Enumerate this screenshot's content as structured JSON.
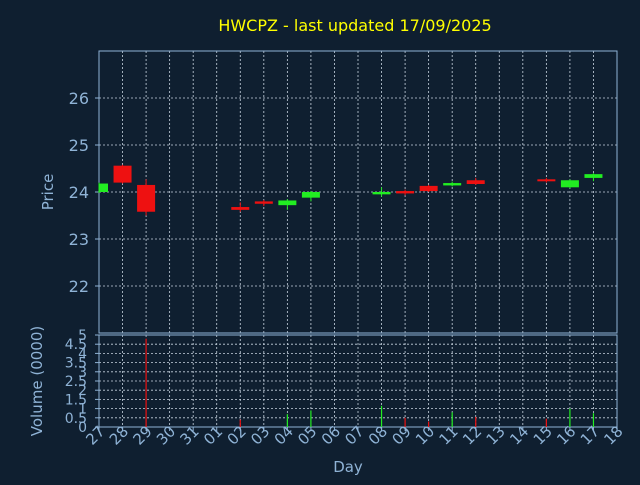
{
  "colors": {
    "background": "#0f1f30",
    "axis": "#8fb3d6",
    "grid": "#c8d4e0",
    "title": "#ffff00",
    "up": "#22ee22",
    "down": "#ee1111"
  },
  "chart_data": [
    {
      "type": "candlestick",
      "title": "HWCPZ - last updated 17/09/2025",
      "ylabel": "Price",
      "ylim": [
        21.0,
        27.0
      ],
      "yticks": [
        "22",
        "23",
        "24",
        "25",
        "26"
      ],
      "grid": true,
      "x": [
        "27",
        "28",
        "29",
        "30",
        "31",
        "01",
        "02",
        "03",
        "04",
        "05",
        "06",
        "07",
        "08",
        "09",
        "10",
        "11",
        "12",
        "13",
        "14",
        "15",
        "16",
        "17",
        "18"
      ],
      "candles": [
        {
          "day": "27",
          "open": 24.0,
          "close": 24.18,
          "high": 24.2,
          "low": 23.98
        },
        {
          "day": "28",
          "open": 24.56,
          "close": 24.2,
          "high": 24.58,
          "low": 24.18
        },
        {
          "day": "29",
          "open": 24.15,
          "close": 23.58,
          "high": 24.27,
          "low": 23.5
        },
        {
          "day": "02",
          "open": 23.68,
          "close": 23.62,
          "high": 23.78,
          "low": 23.58
        },
        {
          "day": "03",
          "open": 23.8,
          "close": 23.75,
          "high": 23.83,
          "low": 23.7
        },
        {
          "day": "04",
          "open": 23.72,
          "close": 23.82,
          "high": 23.85,
          "low": 23.62
        },
        {
          "day": "05",
          "open": 23.88,
          "close": 24.0,
          "high": 24.02,
          "low": 23.8
        },
        {
          "day": "08",
          "open": 23.95,
          "close": 24.0,
          "high": 24.1,
          "low": 23.9
        },
        {
          "day": "09",
          "open": 24.02,
          "close": 23.97,
          "high": 24.05,
          "low": 23.93
        },
        {
          "day": "10",
          "open": 24.13,
          "close": 24.02,
          "high": 24.15,
          "low": 24.0
        },
        {
          "day": "11",
          "open": 24.14,
          "close": 24.19,
          "high": 24.22,
          "low": 24.12
        },
        {
          "day": "12",
          "open": 24.25,
          "close": 24.17,
          "high": 24.3,
          "low": 24.15
        },
        {
          "day": "15",
          "open": 24.27,
          "close": 24.23,
          "high": 24.3,
          "low": 24.2
        },
        {
          "day": "16",
          "open": 24.1,
          "close": 24.25,
          "high": 24.27,
          "low": 24.08
        },
        {
          "day": "17",
          "open": 24.3,
          "close": 24.38,
          "high": 24.4,
          "low": 24.23
        }
      ]
    },
    {
      "type": "bar",
      "ylabel": "Volume (0000)",
      "xlabel": "Day",
      "ylim": [
        0,
        5
      ],
      "yticks": [
        "0",
        "0.5",
        "1",
        "1.5",
        "2",
        "2.5",
        "3",
        "3.5",
        "4",
        "4.5",
        "5"
      ],
      "grid": true,
      "bars": [
        {
          "day": "29",
          "value": 4.8,
          "direction": "down"
        },
        {
          "day": "02",
          "value": 0.4,
          "direction": "down"
        },
        {
          "day": "04",
          "value": 0.7,
          "direction": "up"
        },
        {
          "day": "05",
          "value": 0.9,
          "direction": "up"
        },
        {
          "day": "08",
          "value": 1.15,
          "direction": "up"
        },
        {
          "day": "09",
          "value": 0.5,
          "direction": "down"
        },
        {
          "day": "10",
          "value": 0.3,
          "direction": "down"
        },
        {
          "day": "11",
          "value": 0.8,
          "direction": "up"
        },
        {
          "day": "12",
          "value": 0.55,
          "direction": "down"
        },
        {
          "day": "15",
          "value": 0.45,
          "direction": "down"
        },
        {
          "day": "16",
          "value": 1.0,
          "direction": "up"
        },
        {
          "day": "17",
          "value": 0.75,
          "direction": "up"
        }
      ]
    }
  ]
}
